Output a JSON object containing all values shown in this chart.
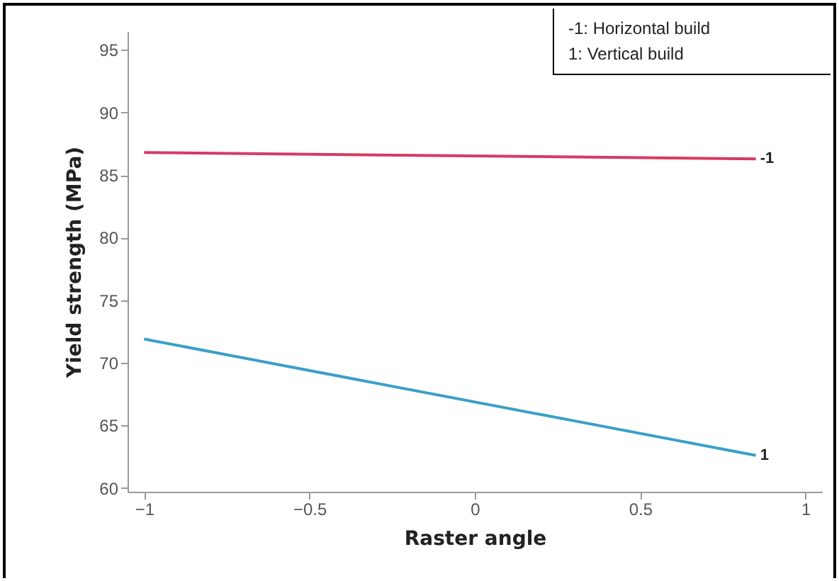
{
  "chart_data": {
    "type": "line",
    "xlabel": "Raster angle",
    "ylabel": "Yield strength (MPa)",
    "x": [
      -1,
      0.85
    ],
    "series": [
      {
        "name": "-1",
        "color": "#d63a64",
        "values": [
          86.8,
          86.3
        ]
      },
      {
        "name": "1",
        "color": "#3a9fc8",
        "values": [
          71.9,
          62.6
        ]
      }
    ],
    "xlim": [
      -1.05,
      1.05
    ],
    "xticks": [
      -1,
      -0.5,
      0,
      0.5,
      1
    ],
    "ylim": [
      59.7,
      96.5
    ],
    "yticks": [
      60,
      65,
      70,
      75,
      80,
      85,
      90,
      95
    ],
    "grid": false,
    "marker": "none",
    "line_style": "solid",
    "annotations": [
      "-1: Horizontal build",
      "1: Vertical build"
    ]
  }
}
